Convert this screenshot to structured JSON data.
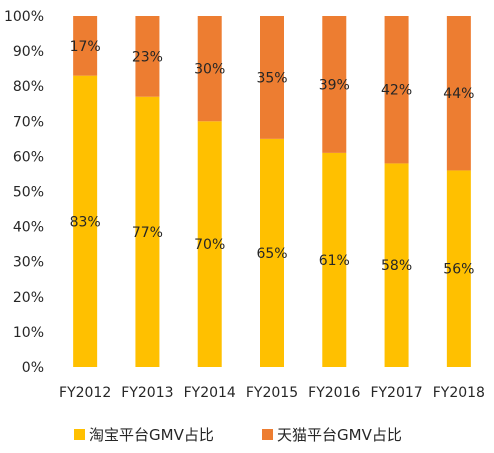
{
  "chart_data": {
    "type": "bar",
    "stacked": true,
    "categories": [
      "FY2012",
      "FY2013",
      "FY2014",
      "FY2015",
      "FY2016",
      "FY2017",
      "FY2018"
    ],
    "series": [
      {
        "name": "淘宝平台GMV占比",
        "color": "#FFC000",
        "values": [
          83,
          77,
          70,
          65,
          61,
          58,
          56
        ],
        "labels": [
          "83%",
          "77%",
          "70%",
          "65%",
          "61%",
          "58%",
          "56%"
        ]
      },
      {
        "name": "天猫平台GMV占比",
        "color": "#ED7D31",
        "values": [
          17,
          23,
          30,
          35,
          39,
          42,
          44
        ],
        "labels": [
          "17%",
          "23%",
          "30%",
          "35%",
          "39%",
          "42%",
          "44%"
        ]
      }
    ],
    "y_ticks": [
      "0%",
      "10%",
      "20%",
      "30%",
      "40%",
      "50%",
      "60%",
      "70%",
      "80%",
      "90%",
      "100%"
    ],
    "ylim": [
      0,
      100
    ],
    "grid": false,
    "legend_position": "bottom"
  }
}
